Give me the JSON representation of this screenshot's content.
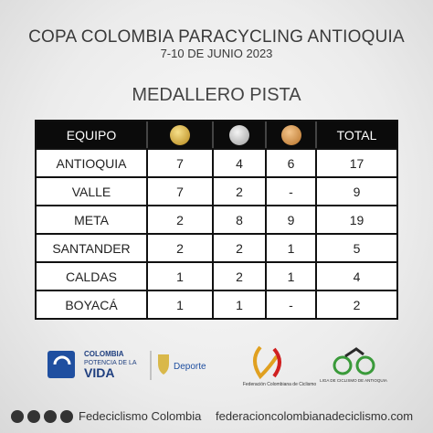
{
  "header": {
    "title": "COPA COLOMBIA PARACYCLING ANTIOQUIA",
    "subtitle": "7-10 DE JUNIO 2023"
  },
  "section_title": "MEDALLERO PISTA",
  "table": {
    "header": {
      "team": "EQUIPO",
      "total": "TOTAL"
    },
    "rows": [
      [
        "ANTIOQUIA",
        7,
        4,
        6,
        17
      ],
      [
        "VALLE",
        7,
        2,
        "-",
        9
      ],
      [
        "META",
        2,
        8,
        9,
        19
      ],
      [
        "SANTANDER",
        2,
        2,
        1,
        5
      ],
      [
        "CALDAS",
        1,
        2,
        1,
        4
      ],
      [
        "BOYACÁ",
        1,
        1,
        "-",
        2
      ]
    ]
  },
  "logos": {
    "colombia": [
      "COLOMBIA",
      "POTENCIA DE LA",
      "VIDA"
    ],
    "deporte": "Deporte",
    "federacion": "Federación Colombiana de Ciclismo",
    "liga": "LIGA DE CICLISMO DE ANTIOQUIA"
  },
  "footer": {
    "social": "Fedeciclismo Colombia",
    "website": "federacioncolombianadeciclismo.com"
  }
}
